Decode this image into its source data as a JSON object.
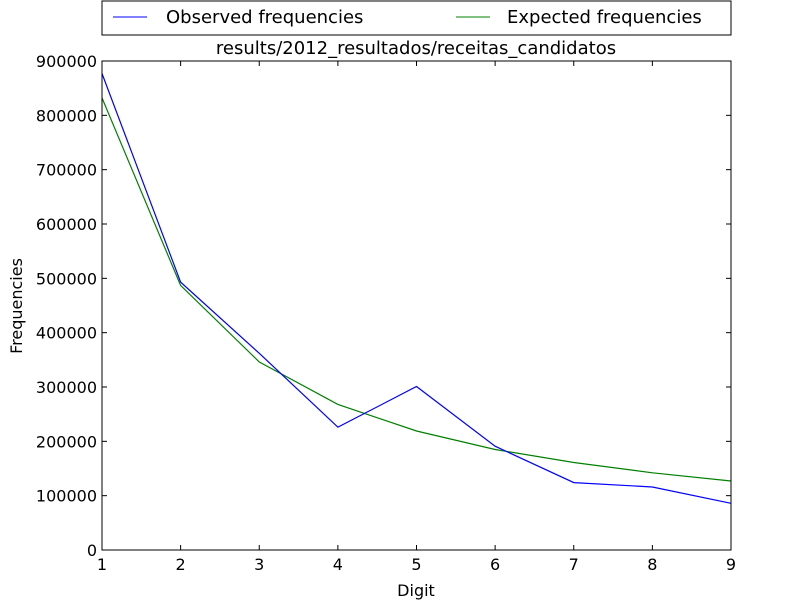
{
  "chart_data": {
    "type": "line",
    "title": "results/2012_resultados/receitas_candidatos",
    "xlabel": "Digit",
    "ylabel": "Frequencies",
    "x": [
      1,
      2,
      3,
      4,
      5,
      6,
      7,
      8,
      9
    ],
    "xlim": [
      1,
      9
    ],
    "ylim": [
      0,
      900000
    ],
    "xticks": [
      "1",
      "2",
      "3",
      "4",
      "5",
      "6",
      "7",
      "8",
      "9"
    ],
    "yticks": [
      "0",
      "100000",
      "200000",
      "300000",
      "400000",
      "500000",
      "600000",
      "700000",
      "800000",
      "900000"
    ],
    "grid": false,
    "legend": "above plot, two columns",
    "series": [
      {
        "name": "Observed frequencies",
        "color": "#0000ff",
        "values": [
          877000,
          493000,
          362000,
          226000,
          301000,
          191000,
          124000,
          116000,
          86000
        ]
      },
      {
        "name": "Expected frequencies",
        "color": "#008000",
        "values": [
          832000,
          487000,
          346000,
          268000,
          219000,
          185000,
          161000,
          142000,
          127000
        ]
      }
    ]
  }
}
